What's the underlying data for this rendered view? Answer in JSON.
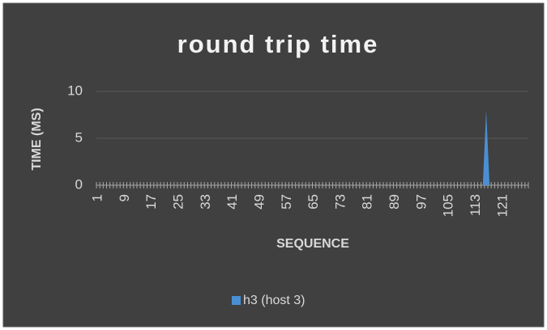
{
  "chart_data": {
    "type": "area",
    "title": "round trip time",
    "x_label": "SEQUENCE",
    "y_label": "TIME (MS)",
    "categories": [
      1,
      null,
      null,
      null,
      null,
      null,
      null,
      null,
      9,
      null,
      null,
      null,
      null,
      null,
      null,
      null,
      17,
      null,
      null,
      null,
      null,
      null,
      null,
      null,
      25,
      null,
      null,
      null,
      null,
      null,
      null,
      null,
      33,
      null,
      null,
      null,
      null,
      null,
      null,
      null,
      41,
      null,
      null,
      null,
      null,
      null,
      null,
      null,
      49,
      null,
      null,
      null,
      null,
      null,
      null,
      null,
      57,
      null,
      null,
      null,
      null,
      null,
      null,
      null,
      65,
      null,
      null,
      null,
      null,
      null,
      null,
      null,
      73,
      null,
      null,
      null,
      null,
      null,
      null,
      null,
      81,
      null,
      null,
      null,
      null,
      null,
      null,
      null,
      89,
      null,
      null,
      null,
      null,
      null,
      null,
      null,
      97,
      null,
      null,
      null,
      null,
      null,
      null,
      null,
      105,
      null,
      null,
      null,
      null,
      null,
      null,
      null,
      113,
      null,
      null,
      null,
      null,
      null,
      null,
      null,
      121,
      null,
      null,
      null,
      null,
      null,
      null,
      null
    ],
    "series": [
      {
        "name": "h3 (host 3)",
        "color": "#4a8fd4",
        "values": [
          0,
          0,
          0,
          0,
          0,
          0,
          0,
          0,
          0,
          0,
          0,
          0,
          0,
          0,
          0,
          0,
          0,
          0,
          0,
          0,
          0,
          0,
          0,
          0,
          0,
          0,
          0,
          0,
          0,
          0,
          0,
          0,
          0,
          0,
          0,
          0,
          0,
          0,
          0,
          0,
          0,
          0,
          0,
          0,
          0,
          0,
          0,
          0,
          0,
          0,
          0,
          0,
          0,
          0,
          0,
          0,
          0,
          0,
          0,
          0,
          0,
          0,
          0,
          0,
          0,
          0,
          0,
          0,
          0,
          0,
          0,
          0,
          0,
          0,
          0,
          0,
          0,
          0,
          0,
          0,
          0,
          0,
          0,
          0,
          0,
          0,
          0,
          0,
          0,
          0,
          0,
          0,
          0,
          0,
          0,
          0,
          0,
          0,
          0,
          0,
          0,
          0,
          0,
          0,
          0,
          0,
          0,
          0,
          0,
          0,
          0,
          0,
          0,
          0,
          0,
          8,
          0,
          0,
          0,
          0,
          0,
          0,
          0,
          0,
          0,
          0,
          0,
          0
        ]
      }
    ],
    "ylim": [
      0,
      10
    ],
    "yticks": [
      0,
      5,
      10
    ],
    "grid": true,
    "legend": "bottom"
  }
}
